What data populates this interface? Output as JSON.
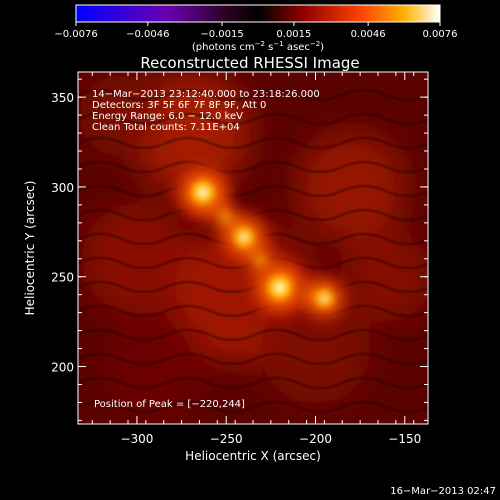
{
  "chart_data": {
    "type": "heatmap",
    "title": "Reconstructed RHESSI Image",
    "xlabel": "Heliocentric X (arcsec)",
    "ylabel": "Heliocentric Y (arcsec)",
    "xlim": [
      -333,
      -137
    ],
    "ylim": [
      168,
      364
    ],
    "x_ticks": [
      -300,
      -250,
      -200,
      -150
    ],
    "y_ticks": [
      200,
      250,
      300,
      350
    ],
    "x_tick_labels": [
      "−300",
      "−250",
      "−200",
      "−150"
    ],
    "y_tick_labels": [
      "200",
      "250",
      "300",
      "350"
    ],
    "colorbar": {
      "range": [
        -0.0076,
        0.0076
      ],
      "ticks": [
        -0.0076,
        -0.0046,
        -0.0015,
        0.0015,
        0.0046,
        0.0076
      ],
      "tick_labels": [
        "−0.0076",
        "−0.0046",
        "−0.0015",
        "0.0015",
        "0.0046",
        "0.0076"
      ],
      "units_prefix": "(photons cm",
      "units_exp1": "−2",
      "units_mid1": " s",
      "units_exp2": "−1",
      "units_mid2": " asec",
      "units_exp3": "−2",
      "units_suffix": ")"
    },
    "annotations": [
      "14−Mar−2013 23:12:40.000 to 23:18:26.000",
      "Detectors: 3F 5F 6F 7F 8F 9F, Att 0",
      "Energy Range: 6.0 − 12.0 keV",
      "Clean      Total counts: 7.11E+04"
    ],
    "peak_text": "Position of Peak = [−220,244]",
    "peak": [
      -220,
      244
    ],
    "sources": [
      {
        "x": -263,
        "y": 297,
        "peak": 0.0072
      },
      {
        "x": -240,
        "y": 272,
        "peak": 0.0058
      },
      {
        "x": -220,
        "y": 244,
        "peak": 0.0076
      },
      {
        "x": -195,
        "y": 238,
        "peak": 0.005
      }
    ],
    "timestamp": "16−Mar−2013 02:47"
  }
}
